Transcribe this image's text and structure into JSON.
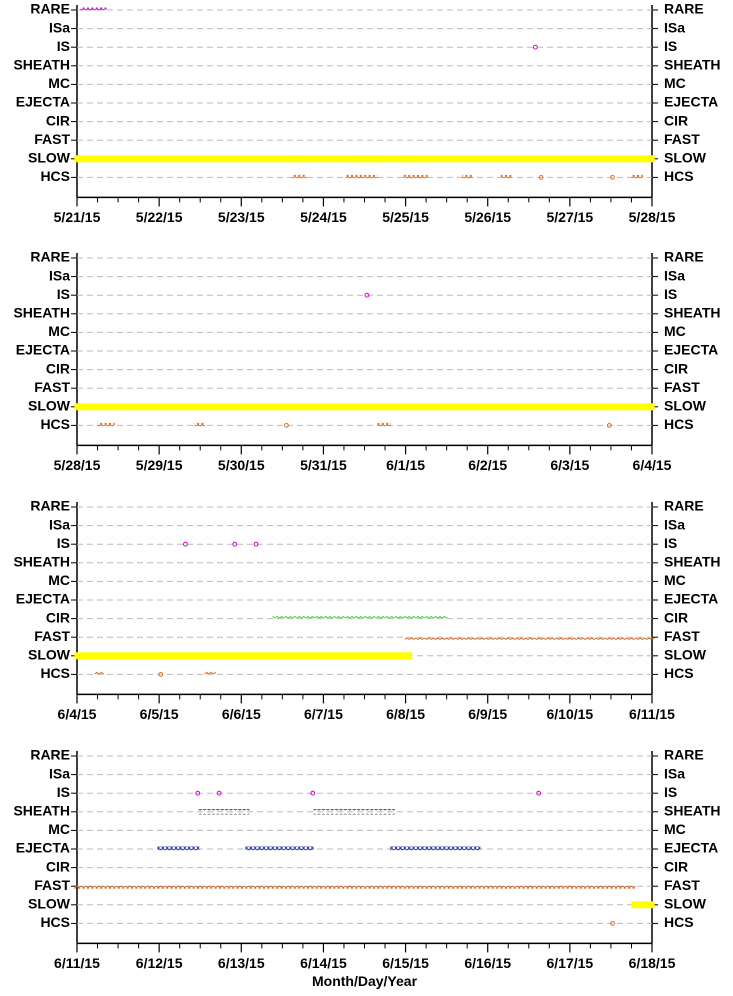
{
  "chart_data": [
    {
      "type": "scatter",
      "categories": [
        "RARE",
        "ISa",
        "IS",
        "SHEATH",
        "MC",
        "EJECTA",
        "CIR",
        "FAST",
        "SLOW",
        "HCS"
      ],
      "xlim": [
        0,
        7
      ],
      "xticks": [
        {
          "value": 0,
          "label": "5/21/15"
        },
        {
          "value": 1,
          "label": "5/22/15"
        },
        {
          "value": 2,
          "label": "5/23/15"
        },
        {
          "value": 3,
          "label": "5/24/15"
        },
        {
          "value": 4,
          "label": "5/25/15"
        },
        {
          "value": 5,
          "label": "5/26/15"
        },
        {
          "value": 6,
          "label": "5/27/15"
        },
        {
          "value": 7,
          "label": "5/28/15"
        }
      ],
      "grid": true,
      "series": [
        {
          "y": 0,
          "color": "#cc00cc",
          "marker": "open",
          "runs": [
            [
              0.07,
              0.33
            ]
          ]
        },
        {
          "y": 2,
          "color": "#cc00cc",
          "marker": "open",
          "x": [
            5.58
          ]
        },
        {
          "y": 8,
          "color": "#ffff00",
          "marker": "filled",
          "runs": [
            [
              0,
              7
            ]
          ]
        },
        {
          "y": 9,
          "color": "#e07020",
          "marker": "open",
          "runs": [
            [
              2.65,
              2.77
            ],
            [
              3.3,
              3.63
            ],
            [
              4.0,
              4.24
            ],
            [
              4.72,
              4.79
            ],
            [
              5.19,
              5.26
            ],
            [
              6.78,
              6.86
            ]
          ],
          "x": [
            5.65,
            6.52
          ]
        }
      ]
    },
    {
      "type": "scatter",
      "categories": [
        "RARE",
        "ISa",
        "IS",
        "SHEATH",
        "MC",
        "EJECTA",
        "CIR",
        "FAST",
        "SLOW",
        "HCS"
      ],
      "xlim": [
        0,
        7
      ],
      "xticks": [
        {
          "value": 0,
          "label": "5/28/15"
        },
        {
          "value": 1,
          "label": "5/29/15"
        },
        {
          "value": 2,
          "label": "5/30/15"
        },
        {
          "value": 3,
          "label": "5/31/15"
        },
        {
          "value": 4,
          "label": "6/1/15"
        },
        {
          "value": 5,
          "label": "6/2/15"
        },
        {
          "value": 6,
          "label": "6/3/15"
        },
        {
          "value": 7,
          "label": "6/4/15"
        }
      ],
      "grid": true,
      "series": [
        {
          "y": 2,
          "color": "#cc00cc",
          "marker": "open",
          "x": [
            3.53
          ]
        },
        {
          "y": 8,
          "color": "#ffff00",
          "marker": "filled",
          "runs": [
            [
              0,
              7
            ]
          ]
        },
        {
          "y": 9,
          "color": "#e07020",
          "marker": "open",
          "runs": [
            [
              0.28,
              0.43
            ],
            [
              1.46,
              1.53
            ],
            [
              3.69,
              3.79
            ]
          ],
          "x": [
            2.55,
            6.48
          ]
        }
      ]
    },
    {
      "type": "scatter",
      "categories": [
        "RARE",
        "ISa",
        "IS",
        "SHEATH",
        "MC",
        "EJECTA",
        "CIR",
        "FAST",
        "SLOW",
        "HCS"
      ],
      "xlim": [
        0,
        7
      ],
      "xticks": [
        {
          "value": 0,
          "label": "6/4/15"
        },
        {
          "value": 1,
          "label": "6/5/15"
        },
        {
          "value": 2,
          "label": "6/6/15"
        },
        {
          "value": 3,
          "label": "6/7/15"
        },
        {
          "value": 4,
          "label": "6/8/15"
        },
        {
          "value": 5,
          "label": "6/9/15"
        },
        {
          "value": 6,
          "label": "6/10/15"
        },
        {
          "value": 7,
          "label": "6/11/15"
        }
      ],
      "grid": true,
      "series": [
        {
          "y": 2,
          "color": "#cc00cc",
          "marker": "open",
          "x": [
            1.32,
            1.92,
            2.18
          ]
        },
        {
          "y": 6,
          "color": "#33dd33",
          "marker": "open",
          "runs": [
            [
              2.41,
              4.48
            ]
          ]
        },
        {
          "y": 7,
          "color": "#c8682a",
          "marker": "open",
          "runs": [
            [
              4.02,
              7
            ]
          ]
        },
        {
          "y": 8,
          "color": "#ffff00",
          "marker": "filled",
          "runs": [
            [
              0,
              4.05
            ]
          ]
        },
        {
          "y": 9,
          "color": "#e07020",
          "marker": "open",
          "runs": [
            [
              0.24,
              0.3
            ],
            [
              1.58,
              1.66
            ]
          ],
          "x": [
            1.02
          ]
        }
      ]
    },
    {
      "type": "scatter",
      "categories": [
        "RARE",
        "ISa",
        "IS",
        "SHEATH",
        "MC",
        "EJECTA",
        "CIR",
        "FAST",
        "SLOW",
        "HCS"
      ],
      "xlim": [
        0,
        7
      ],
      "xticks": [
        {
          "value": 0,
          "label": "6/11/15"
        },
        {
          "value": 1,
          "label": "6/12/15"
        },
        {
          "value": 2,
          "label": "6/13/15"
        },
        {
          "value": 3,
          "label": "6/14/15"
        },
        {
          "value": 4,
          "label": "6/15/15"
        },
        {
          "value": 5,
          "label": "6/16/15"
        },
        {
          "value": 6,
          "label": "6/17/15"
        },
        {
          "value": 7,
          "label": "6/18/15"
        }
      ],
      "grid": true,
      "xlabel": "Month/Day/Year",
      "series": [
        {
          "y": 2,
          "color": "#cc00cc",
          "marker": "open",
          "x": [
            1.47,
            1.73,
            2.87,
            5.62
          ]
        },
        {
          "y": 3,
          "color": "#000000",
          "marker": "open",
          "runs": [
            [
              1.51,
              2.07
            ],
            [
              2.91,
              3.84
            ]
          ]
        },
        {
          "y": 5,
          "color": "#2233aa",
          "marker": "open",
          "runs": [
            [
              1.01,
              1.46
            ],
            [
              2.08,
              2.85
            ],
            [
              3.84,
              4.88
            ]
          ]
        },
        {
          "y": 7,
          "color": "#c8682a",
          "marker": "open",
          "runs": [
            [
              0,
              6.77
            ]
          ]
        },
        {
          "y": 8,
          "color": "#ffff00",
          "marker": "filled",
          "runs": [
            [
              6.78,
              7
            ]
          ]
        },
        {
          "y": 9,
          "color": "#e07020",
          "marker": "open",
          "x": [
            6.52
          ]
        }
      ]
    }
  ]
}
